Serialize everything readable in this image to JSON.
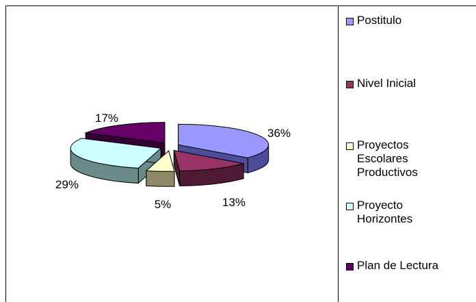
{
  "chart_data": {
    "type": "pie",
    "style": "3d-exploded",
    "title": "",
    "legend_position": "right",
    "slices": [
      {
        "label": "Postitulo",
        "value": 36,
        "value_label": "36%",
        "top_color": "#9999ff",
        "side_color": "#4d4d99"
      },
      {
        "label": "Nivel Inicial",
        "value": 13,
        "value_label": "13%",
        "top_color": "#993366",
        "side_color": "#4f1a33"
      },
      {
        "label": "Proyectos Escolares Productivos",
        "value": 5,
        "value_label": "5%",
        "top_color": "#ffffcc",
        "side_color": "#8c8a66"
      },
      {
        "label": "Proyecto Horizontes",
        "value": 29,
        "value_label": "29%",
        "top_color": "#ccffff",
        "side_color": "#6b8a8a"
      },
      {
        "label": "Plan de Lectura",
        "value": 17,
        "value_label": "17%",
        "top_color": "#660066",
        "side_color": "#330033"
      }
    ]
  },
  "legend": {
    "items": [
      {
        "lines": [
          "Postitulo"
        ],
        "color": "#9999ff"
      },
      {
        "lines": [
          "Nivel Inicial"
        ],
        "color": "#993366"
      },
      {
        "lines": [
          "Proyectos",
          "Escolares",
          "Productivos"
        ],
        "color": "#ffffcc"
      },
      {
        "lines": [
          "Proyecto",
          "Horizontes"
        ],
        "color": "#ccffff"
      },
      {
        "lines": [
          "Plan de Lectura"
        ],
        "color": "#660066"
      }
    ]
  }
}
